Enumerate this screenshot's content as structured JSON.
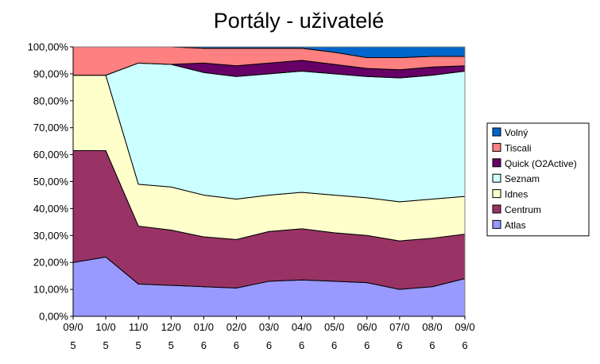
{
  "chart_data": {
    "type": "area",
    "stacked": true,
    "title": "Portály - uživatelé",
    "xlabel": "",
    "ylabel": "",
    "x": [
      [
        "09/0",
        "5"
      ],
      [
        "10/0",
        "5"
      ],
      [
        "11/0",
        "5"
      ],
      [
        "12/0",
        "5"
      ],
      [
        "01/0",
        "6"
      ],
      [
        "02/0",
        "6"
      ],
      [
        "03/0",
        "6"
      ],
      [
        "04/0",
        "6"
      ],
      [
        "05/0",
        "6"
      ],
      [
        "06/0",
        "6"
      ],
      [
        "07/0",
        "6"
      ],
      [
        "08/0",
        "6"
      ],
      [
        "09/0",
        "6"
      ]
    ],
    "y_ticks": [
      "0,00%",
      "10,00%",
      "20,00%",
      "30,00%",
      "40,00%",
      "50,00%",
      "60,00%",
      "70,00%",
      "80,00%",
      "90,00%",
      "100,00%"
    ],
    "ylim": [
      0,
      100
    ],
    "grid": true,
    "legend_position": "right",
    "series": [
      {
        "name": "Atlas",
        "color": "#9999ff",
        "values": [
          20,
          22,
          12,
          11.5,
          11,
          10.5,
          13,
          13.5,
          13,
          12.5,
          10,
          11,
          14
        ]
      },
      {
        "name": "Centrum",
        "color": "#993366",
        "values": [
          41.5,
          39.5,
          21.5,
          20.5,
          18.5,
          18,
          18.5,
          19,
          18,
          17.5,
          18,
          18,
          16.5
        ]
      },
      {
        "name": "Idnes",
        "color": "#ffffcc",
        "values": [
          28,
          28,
          15.5,
          16,
          15.5,
          15,
          13.5,
          13.5,
          14,
          14,
          14.5,
          14.5,
          14
        ]
      },
      {
        "name": "Seznam",
        "color": "#ccffff",
        "values": [
          0,
          0,
          45,
          45.5,
          45.5,
          45.5,
          45,
          45,
          45,
          45,
          46,
          46,
          46.5
        ]
      },
      {
        "name": "Quick (O2Active)",
        "color": "#660066",
        "values": [
          0,
          0,
          0,
          0,
          3.5,
          4,
          4,
          4,
          3.5,
          3,
          3,
          3,
          2
        ]
      },
      {
        "name": "Tiscali",
        "color": "#ff8080",
        "values": [
          10.5,
          10.5,
          6,
          6.5,
          5.5,
          6.5,
          5.5,
          4.5,
          4.5,
          4,
          4.5,
          4,
          3.5
        ]
      },
      {
        "name": "Volný",
        "color": "#0066cc",
        "values": [
          0,
          0,
          0,
          0,
          0.5,
          0.5,
          0.5,
          0.5,
          2,
          4,
          4,
          3.5,
          3.5
        ]
      }
    ]
  }
}
